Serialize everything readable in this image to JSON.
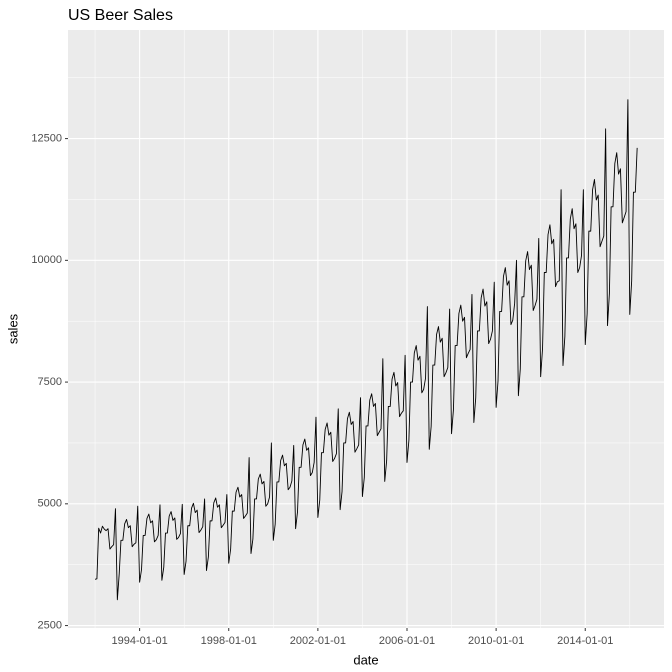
{
  "chart_data": {
    "type": "line",
    "title": "US Beer Sales",
    "x_label": "date",
    "y_label": "sales",
    "x": [
      "1992-01-01",
      "1992-02-01",
      "1992-03-01",
      "1992-04-01",
      "1992-05-01",
      "1992-06-01",
      "1992-07-01",
      "1992-08-01",
      "1992-09-01",
      "1992-10-01",
      "1992-11-01",
      "1992-12-01",
      "1993-01-01",
      "1993-02-01",
      "1993-03-01",
      "1993-04-01",
      "1993-05-01",
      "1993-06-01",
      "1993-07-01",
      "1993-08-01",
      "1993-09-01",
      "1993-10-01",
      "1993-11-01",
      "1993-12-01",
      "1994-01-01",
      "1994-02-01",
      "1994-03-01",
      "1994-04-01",
      "1994-05-01",
      "1994-06-01",
      "1994-07-01",
      "1994-08-01",
      "1994-09-01",
      "1994-10-01",
      "1994-11-01",
      "1994-12-01",
      "1995-01-01",
      "1995-02-01",
      "1995-03-01",
      "1995-04-01",
      "1995-05-01",
      "1995-06-01",
      "1995-07-01",
      "1995-08-01",
      "1995-09-01",
      "1995-10-01",
      "1995-11-01",
      "1995-12-01",
      "1996-01-01",
      "1996-02-01",
      "1996-03-01",
      "1996-04-01",
      "1996-05-01",
      "1996-06-01",
      "1996-07-01",
      "1996-08-01",
      "1996-09-01",
      "1996-10-01",
      "1996-11-01",
      "1996-12-01",
      "1997-01-01",
      "1997-02-01",
      "1997-03-01",
      "1997-04-01",
      "1997-05-01",
      "1997-06-01",
      "1997-07-01",
      "1997-08-01",
      "1997-09-01",
      "1997-10-01",
      "1997-11-01",
      "1997-12-01",
      "1998-01-01",
      "1998-02-01",
      "1998-03-01",
      "1998-04-01",
      "1998-05-01",
      "1998-06-01",
      "1998-07-01",
      "1998-08-01",
      "1998-09-01",
      "1998-10-01",
      "1998-11-01",
      "1998-12-01",
      "1999-01-01",
      "1999-02-01",
      "1999-03-01",
      "1999-04-01",
      "1999-05-01",
      "1999-06-01",
      "1999-07-01",
      "1999-08-01",
      "1999-09-01",
      "1999-10-01",
      "1999-11-01",
      "1999-12-01",
      "2000-01-01",
      "2000-02-01",
      "2000-03-01",
      "2000-04-01",
      "2000-05-01",
      "2000-06-01",
      "2000-07-01",
      "2000-08-01",
      "2000-09-01",
      "2000-10-01",
      "2000-11-01",
      "2000-12-01",
      "2001-01-01",
      "2001-02-01",
      "2001-03-01",
      "2001-04-01",
      "2001-05-01",
      "2001-06-01",
      "2001-07-01",
      "2001-08-01",
      "2001-09-01",
      "2001-10-01",
      "2001-11-01",
      "2001-12-01",
      "2002-01-01",
      "2002-02-01",
      "2002-03-01",
      "2002-04-01",
      "2002-05-01",
      "2002-06-01",
      "2002-07-01",
      "2002-08-01",
      "2002-09-01",
      "2002-10-01",
      "2002-11-01",
      "2002-12-01",
      "2003-01-01",
      "2003-02-01",
      "2003-03-01",
      "2003-04-01",
      "2003-05-01",
      "2003-06-01",
      "2003-07-01",
      "2003-08-01",
      "2003-09-01",
      "2003-10-01",
      "2003-11-01",
      "2003-12-01",
      "2004-01-01",
      "2004-02-01",
      "2004-03-01",
      "2004-04-01",
      "2004-05-01",
      "2004-06-01",
      "2004-07-01",
      "2004-08-01",
      "2004-09-01",
      "2004-10-01",
      "2004-11-01",
      "2004-12-01",
      "2005-01-01",
      "2005-02-01",
      "2005-03-01",
      "2005-04-01",
      "2005-05-01",
      "2005-06-01",
      "2005-07-01",
      "2005-08-01",
      "2005-09-01",
      "2005-10-01",
      "2005-11-01",
      "2005-12-01",
      "2006-01-01",
      "2006-02-01",
      "2006-03-01",
      "2006-04-01",
      "2006-05-01",
      "2006-06-01",
      "2006-07-01",
      "2006-08-01",
      "2006-09-01",
      "2006-10-01",
      "2006-11-01",
      "2006-12-01",
      "2007-01-01",
      "2007-02-01",
      "2007-03-01",
      "2007-04-01",
      "2007-05-01",
      "2007-06-01",
      "2007-07-01",
      "2007-08-01",
      "2007-09-01",
      "2007-10-01",
      "2007-11-01",
      "2007-12-01",
      "2008-01-01",
      "2008-02-01",
      "2008-03-01",
      "2008-04-01",
      "2008-05-01",
      "2008-06-01",
      "2008-07-01",
      "2008-08-01",
      "2008-09-01",
      "2008-10-01",
      "2008-11-01",
      "2008-12-01",
      "2009-01-01",
      "2009-02-01",
      "2009-03-01",
      "2009-04-01",
      "2009-05-01",
      "2009-06-01",
      "2009-07-01",
      "2009-08-01",
      "2009-09-01",
      "2009-10-01",
      "2009-11-01",
      "2009-12-01",
      "2010-01-01",
      "2010-02-01",
      "2010-03-01",
      "2010-04-01",
      "2010-05-01",
      "2010-06-01",
      "2010-07-01",
      "2010-08-01",
      "2010-09-01",
      "2010-10-01",
      "2010-11-01",
      "2010-12-01",
      "2011-01-01",
      "2011-02-01",
      "2011-03-01",
      "2011-04-01",
      "2011-05-01",
      "2011-06-01",
      "2011-07-01",
      "2011-08-01",
      "2011-09-01",
      "2011-10-01",
      "2011-11-01",
      "2011-12-01",
      "2012-01-01",
      "2012-02-01",
      "2012-03-01",
      "2012-04-01",
      "2012-05-01",
      "2012-06-01",
      "2012-07-01",
      "2012-08-01",
      "2012-09-01",
      "2012-10-01",
      "2012-11-01",
      "2012-12-01",
      "2013-01-01",
      "2013-02-01",
      "2013-03-01",
      "2013-04-01",
      "2013-05-01",
      "2013-06-01",
      "2013-07-01",
      "2013-08-01",
      "2013-09-01",
      "2013-10-01",
      "2013-11-01",
      "2013-12-01",
      "2014-01-01",
      "2014-02-01",
      "2014-03-01",
      "2014-04-01",
      "2014-05-01",
      "2014-06-01",
      "2014-07-01",
      "2014-08-01",
      "2014-09-01",
      "2014-10-01",
      "2014-11-01",
      "2014-12-01",
      "2015-01-01",
      "2015-02-01",
      "2015-03-01",
      "2015-04-01",
      "2015-05-01",
      "2015-06-01",
      "2015-07-01",
      "2015-08-01",
      "2015-09-01",
      "2015-10-01",
      "2015-11-01",
      "2015-12-01",
      "2016-01-01",
      "2016-02-01",
      "2016-03-01",
      "2016-04-01",
      "2016-05-01"
    ],
    "series": [
      {
        "name": "sales",
        "color": "#000000",
        "values": [
          3450,
          3460,
          4500,
          4400,
          4540,
          4480,
          4450,
          4490,
          4070,
          4120,
          4160,
          4900,
          3030,
          3570,
          4250,
          4250,
          4590,
          4680,
          4510,
          4550,
          4120,
          4170,
          4200,
          4950,
          3390,
          3650,
          4350,
          4350,
          4700,
          4790,
          4610,
          4650,
          4220,
          4260,
          4350,
          4980,
          3430,
          3700,
          4400,
          4400,
          4750,
          4840,
          4660,
          4710,
          4270,
          4310,
          4390,
          4990,
          3550,
          3820,
          4550,
          4550,
          4910,
          5010,
          4820,
          4870,
          4410,
          4460,
          4530,
          5100,
          3630,
          3910,
          4650,
          4650,
          5020,
          5120,
          4930,
          4980,
          4510,
          4560,
          4620,
          5190,
          3780,
          4070,
          4850,
          4850,
          5240,
          5340,
          5140,
          5190,
          4700,
          4750,
          4810,
          5950,
          3980,
          4280,
          5100,
          5100,
          5510,
          5610,
          5410,
          5460,
          4950,
          5000,
          5140,
          6250,
          4250,
          4580,
          5450,
          5450,
          5890,
          6000,
          5780,
          5830,
          5290,
          5340,
          5470,
          6200,
          4490,
          4830,
          5750,
          5750,
          6210,
          6330,
          6100,
          6150,
          5580,
          5640,
          5850,
          6780,
          4720,
          5080,
          6050,
          6050,
          6530,
          6660,
          6410,
          6470,
          5870,
          5930,
          6030,
          6950,
          4880,
          5250,
          6250,
          6250,
          6750,
          6880,
          6630,
          6690,
          6060,
          6130,
          6210,
          7180,
          5150,
          5540,
          6600,
          6600,
          7130,
          7260,
          7000,
          7060,
          6400,
          6470,
          6540,
          7980,
          5460,
          5880,
          7000,
          7000,
          7560,
          7700,
          7420,
          7490,
          6790,
          6860,
          6910,
          8050,
          5850,
          6300,
          7500,
          7500,
          8100,
          8250,
          7950,
          8030,
          7280,
          7350,
          7580,
          9050,
          6120,
          6590,
          7850,
          7850,
          8480,
          8640,
          8320,
          8400,
          7610,
          7690,
          7800,
          9000,
          6440,
          6930,
          8250,
          8250,
          8910,
          9080,
          8750,
          8830,
          8000,
          8090,
          8170,
          9300,
          6670,
          7180,
          8550,
          8550,
          9230,
          9410,
          9060,
          9150,
          8290,
          8380,
          8550,
          9550,
          6980,
          7520,
          8950,
          8950,
          9670,
          9850,
          9490,
          9580,
          8680,
          8770,
          9120,
          10000,
          7220,
          7770,
          9250,
          9250,
          9990,
          10180,
          9810,
          9900,
          8970,
          9070,
          9200,
          10450,
          7610,
          8190,
          9750,
          9750,
          10530,
          10730,
          10340,
          10430,
          9460,
          9560,
          9580,
          11450,
          7840,
          8440,
          10050,
          10050,
          10850,
          11060,
          10650,
          10750,
          9750,
          9850,
          10100,
          11450,
          8270,
          8900,
          10600,
          10600,
          11450,
          11660,
          11240,
          11340,
          10280,
          10390,
          10500,
          12700,
          8660,
          9320,
          11100,
          11100,
          11990,
          12210,
          11770,
          11880,
          10770,
          10880,
          11000,
          13300,
          8890,
          9580,
          11400,
          11400,
          12310
        ]
      }
    ],
    "xlim": [
      "1990-10-15",
      "2017-07-15"
    ],
    "xticks": [
      "1994-01-01",
      "1998-01-01",
      "2002-01-01",
      "2006-01-01",
      "2010-01-01",
      "2014-01-01"
    ],
    "ylim": [
      2450,
      14730
    ],
    "yticks": [
      2500,
      5000,
      7500,
      10000,
      12500
    ],
    "grid": true
  }
}
